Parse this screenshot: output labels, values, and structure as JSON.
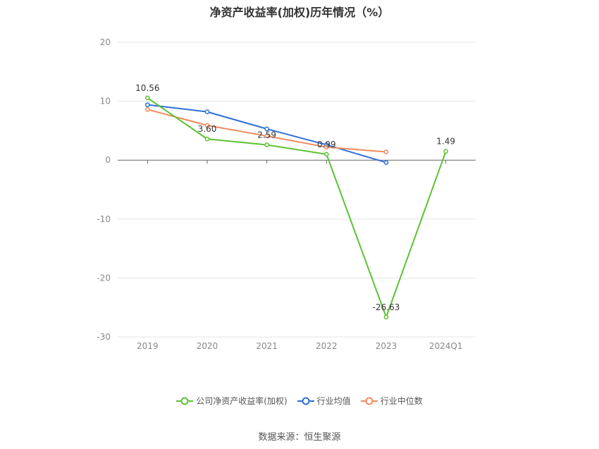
{
  "title": "净资产收益率(加权)历年情况（%）",
  "source_text": "数据来源：恒生聚源",
  "chart_data": {
    "type": "line",
    "categories": [
      "2019",
      "2020",
      "2021",
      "2022",
      "2023",
      "2024Q1"
    ],
    "ylim": [
      -30,
      20
    ],
    "yticks": [
      20,
      10,
      0,
      -10,
      -20,
      -30
    ],
    "grid": true,
    "legend_position": "bottom",
    "series": [
      {
        "name": "公司净资产收益率(加权)",
        "color": "#5cc332",
        "values": [
          10.56,
          3.6,
          2.59,
          0.99,
          -26.63,
          1.49
        ],
        "labels": [
          "10.56",
          "3.60",
          "2.59",
          "0.99",
          "-26.63",
          "1.49"
        ]
      },
      {
        "name": "行业均值",
        "color": "#2f6fd6",
        "values": [
          9.4,
          8.2,
          5.3,
          2.6,
          -0.4,
          null
        ]
      },
      {
        "name": "行业中位数",
        "color": "#f08a5d",
        "values": [
          8.6,
          5.9,
          4.1,
          2.2,
          1.4,
          null
        ]
      }
    ]
  }
}
